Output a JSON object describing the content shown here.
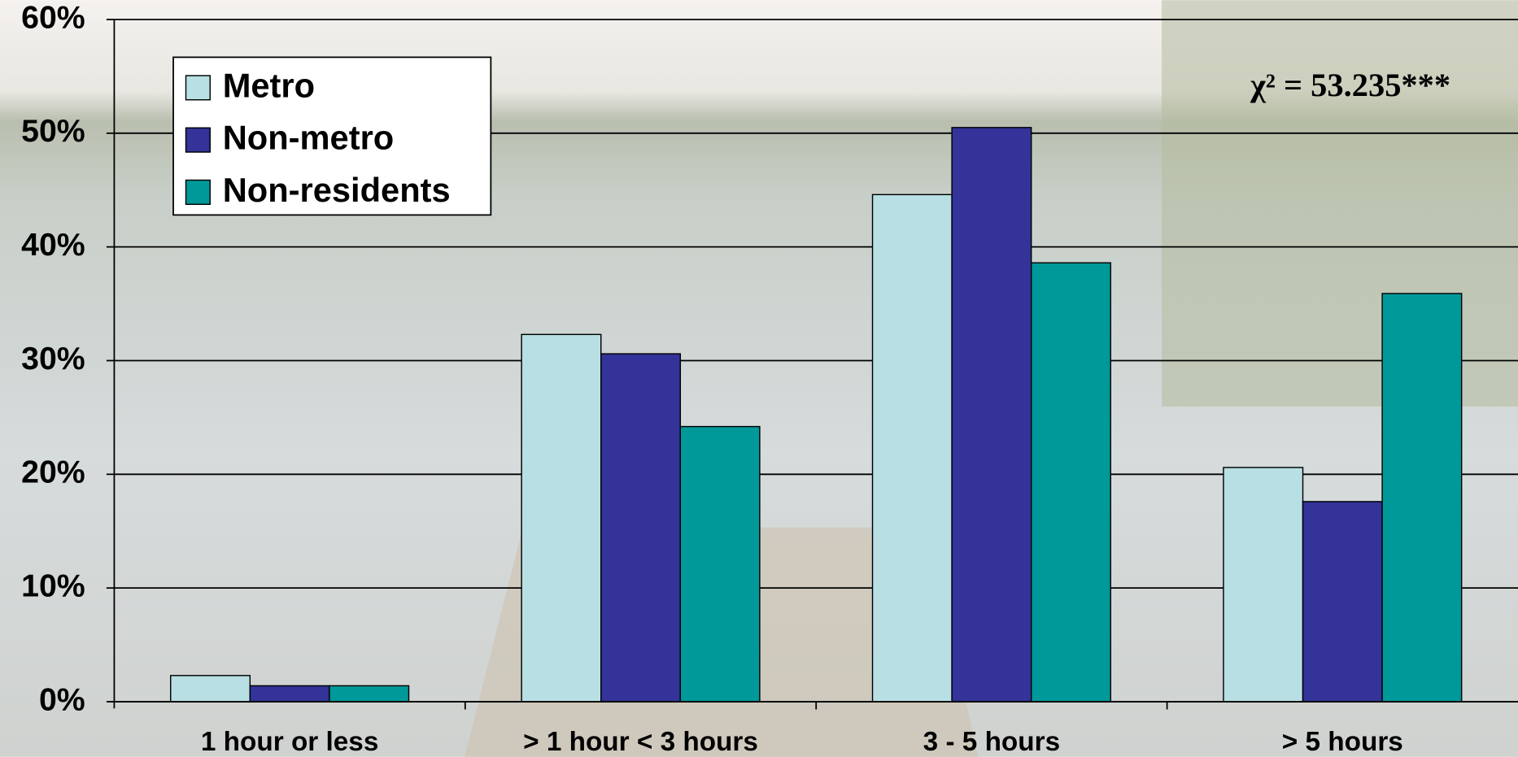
{
  "chart_data": {
    "type": "bar",
    "categories": [
      "1 hour or less",
      "> 1 hour < 3 hours",
      "3 - 5 hours",
      "> 5 hours"
    ],
    "series": [
      {
        "name": "Metro",
        "color": "#b8e0e4",
        "values": [
          2.3,
          32.3,
          44.6,
          20.6
        ]
      },
      {
        "name": "Non-metro",
        "color": "#333399",
        "values": [
          1.4,
          30.6,
          50.5,
          17.6
        ]
      },
      {
        "name": "Non-residents",
        "color": "#009999",
        "values": [
          1.4,
          24.2,
          38.6,
          35.9
        ]
      }
    ],
    "ylim": [
      0,
      60
    ],
    "yticks": [
      {
        "value": 0,
        "label": "0%"
      },
      {
        "value": 10,
        "label": "10%"
      },
      {
        "value": 20,
        "label": "20%"
      },
      {
        "value": 30,
        "label": "30%"
      },
      {
        "value": 40,
        "label": "40%"
      },
      {
        "value": 50,
        "label": "50%"
      },
      {
        "value": 60,
        "label": "60%"
      }
    ],
    "grid": true,
    "legend": "upper-left",
    "annotation": "χ² = 53.235***"
  }
}
